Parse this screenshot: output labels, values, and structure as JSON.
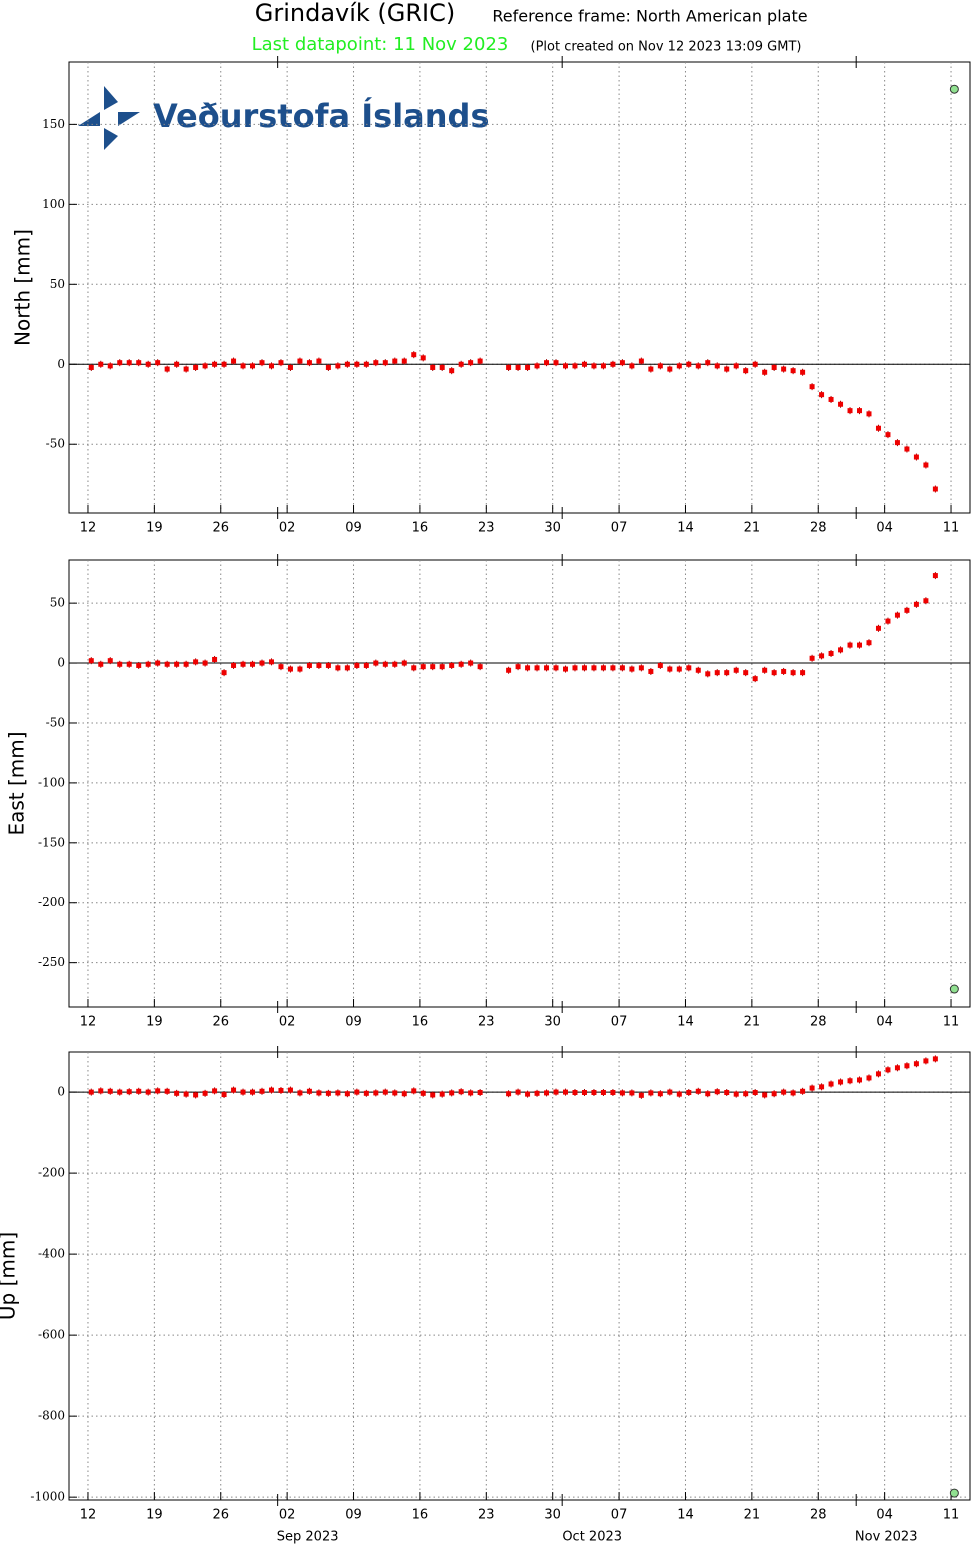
{
  "header": {
    "title": "Grindavík (GRIC)",
    "reference": "Reference frame: North American plate",
    "last_datapoint": "Last datapoint: 11 Nov 2023",
    "created": "(Plot created on Nov 12 2023 13:09 GMT)"
  },
  "logo": "Veðurstofa Íslands",
  "chart_data": [
    {
      "type": "scatter",
      "ylabel": "North [mm]",
      "grid": true,
      "xlim": [
        "2023-08-10",
        "2023-11-13"
      ],
      "xticks": [
        {
          "value": "2023-08-12",
          "label": "12"
        },
        {
          "value": "2023-08-19",
          "label": "19"
        },
        {
          "value": "2023-08-26",
          "label": "26"
        },
        {
          "value": "2023-09-02",
          "label": "02"
        },
        {
          "value": "2023-09-09",
          "label": "09"
        },
        {
          "value": "2023-09-16",
          "label": "16"
        },
        {
          "value": "2023-09-23",
          "label": "23"
        },
        {
          "value": "2023-09-30",
          "label": "30"
        },
        {
          "value": "2023-10-07",
          "label": "07"
        },
        {
          "value": "2023-10-14",
          "label": "14"
        },
        {
          "value": "2023-10-21",
          "label": "21"
        },
        {
          "value": "2023-10-28",
          "label": "28"
        },
        {
          "value": "2023-11-04",
          "label": "04"
        },
        {
          "value": "2023-11-11",
          "label": "11"
        }
      ],
      "ylim": [
        -93,
        189
      ],
      "yticks": [
        -50,
        0,
        50,
        100,
        150
      ],
      "x": [
        "2023-08-12",
        "2023-08-13",
        "2023-08-14",
        "2023-08-15",
        "2023-08-16",
        "2023-08-17",
        "2023-08-18",
        "2023-08-19",
        "2023-08-20",
        "2023-08-21",
        "2023-08-22",
        "2023-08-23",
        "2023-08-24",
        "2023-08-25",
        "2023-08-26",
        "2023-08-27",
        "2023-08-28",
        "2023-08-29",
        "2023-08-30",
        "2023-08-31",
        "2023-09-01",
        "2023-09-02",
        "2023-09-03",
        "2023-09-04",
        "2023-09-05",
        "2023-09-06",
        "2023-09-07",
        "2023-09-08",
        "2023-09-09",
        "2023-09-10",
        "2023-09-11",
        "2023-09-12",
        "2023-09-13",
        "2023-09-14",
        "2023-09-15",
        "2023-09-16",
        "2023-09-17",
        "2023-09-18",
        "2023-09-19",
        "2023-09-20",
        "2023-09-21",
        "2023-09-22",
        "2023-09-23",
        "2023-09-24",
        "2023-09-25",
        "2023-09-26",
        "2023-09-27",
        "2023-09-28",
        "2023-09-29",
        "2023-09-30",
        "2023-10-01",
        "2023-10-02",
        "2023-10-03",
        "2023-10-04",
        "2023-10-05",
        "2023-10-06",
        "2023-10-07",
        "2023-10-08",
        "2023-10-09",
        "2023-10-10",
        "2023-10-11",
        "2023-10-12",
        "2023-10-13",
        "2023-10-14",
        "2023-10-15",
        "2023-10-16",
        "2023-10-17",
        "2023-10-18",
        "2023-10-19",
        "2023-10-20",
        "2023-10-21",
        "2023-10-22",
        "2023-10-23",
        "2023-10-24",
        "2023-10-25",
        "2023-10-26",
        "2023-10-27",
        "2023-10-28",
        "2023-10-29",
        "2023-10-30",
        "2023-10-31",
        "2023-11-01",
        "2023-11-02",
        "2023-11-03",
        "2023-11-04",
        "2023-11-05",
        "2023-11-06",
        "2023-11-07",
        "2023-11-08",
        "2023-11-09"
      ],
      "series": [
        {
          "color": "#ee0000",
          "values": [
            -2,
            0,
            -1,
            1,
            1,
            1,
            0,
            1,
            -3,
            0,
            -3,
            -2,
            -1,
            0,
            0,
            2,
            -1,
            -1,
            1,
            -1,
            1,
            -2,
            2,
            1,
            2,
            -2,
            -1,
            0,
            0,
            0,
            1,
            1,
            2,
            2,
            6,
            4,
            -2,
            -2,
            -4,
            0,
            1,
            2,
            null,
            null,
            -2,
            -2,
            -2,
            -1,
            1,
            1,
            -1,
            -1,
            0,
            -1,
            -1,
            0,
            1,
            -1,
            2,
            -3,
            -1,
            -3,
            -1,
            0,
            -1,
            1,
            -1,
            -3,
            -1,
            -4,
            0,
            -5,
            -2,
            -3,
            -4,
            -5,
            -14,
            -19,
            -22,
            -25,
            -29,
            -29,
            -31,
            -40,
            -44,
            -49,
            -53,
            -58,
            -63,
            -78
          ]
        }
      ],
      "last_point": {
        "x": "2023-11-11",
        "value": 172,
        "color": "#90e090"
      }
    },
    {
      "type": "scatter",
      "ylabel": "East [mm]",
      "grid": true,
      "xlim": [
        "2023-08-10",
        "2023-11-13"
      ],
      "xticks": [
        {
          "value": "2023-08-12",
          "label": "12"
        },
        {
          "value": "2023-08-19",
          "label": "19"
        },
        {
          "value": "2023-08-26",
          "label": "26"
        },
        {
          "value": "2023-09-02",
          "label": "02"
        },
        {
          "value": "2023-09-09",
          "label": "09"
        },
        {
          "value": "2023-09-16",
          "label": "16"
        },
        {
          "value": "2023-09-23",
          "label": "23"
        },
        {
          "value": "2023-09-30",
          "label": "30"
        },
        {
          "value": "2023-10-07",
          "label": "07"
        },
        {
          "value": "2023-10-14",
          "label": "14"
        },
        {
          "value": "2023-10-21",
          "label": "21"
        },
        {
          "value": "2023-10-28",
          "label": "28"
        },
        {
          "value": "2023-11-04",
          "label": "04"
        },
        {
          "value": "2023-11-11",
          "label": "11"
        }
      ],
      "ylim": [
        -287,
        86
      ],
      "yticks": [
        -250,
        -200,
        -150,
        -100,
        -50,
        0,
        50
      ],
      "series": [
        {
          "color": "#ee0000",
          "values": [
            2,
            -1,
            2,
            -1,
            -1,
            -2,
            -1,
            0,
            -1,
            -1,
            -1,
            1,
            0,
            3,
            -8,
            -2,
            -1,
            -1,
            0,
            1,
            -3,
            -5,
            -5,
            -2,
            -2,
            -2,
            -4,
            -4,
            -2,
            -2,
            0,
            -1,
            -1,
            0,
            -4,
            -3,
            -3,
            -3,
            -2,
            -1,
            0,
            -3,
            null,
            null,
            -6,
            -3,
            -4,
            -4,
            -4,
            -4,
            -5,
            -4,
            -4,
            -4,
            -4,
            -4,
            -4,
            -5,
            -4,
            -7,
            -2,
            -5,
            -5,
            -4,
            -6,
            -9,
            -8,
            -8,
            -6,
            -8,
            -13,
            -6,
            -8,
            -7,
            -8,
            -8,
            4,
            6,
            8,
            11,
            15,
            15,
            17,
            29,
            35,
            40,
            44,
            49,
            52,
            73
          ]
        }
      ],
      "last_point": {
        "x": "2023-11-11",
        "value": -272,
        "color": "#90e090"
      }
    },
    {
      "type": "scatter",
      "ylabel": "Up [mm]",
      "grid": true,
      "xlim": [
        "2023-08-10",
        "2023-11-13"
      ],
      "xticks": [
        {
          "value": "2023-08-12",
          "label": "12"
        },
        {
          "value": "2023-08-19",
          "label": "19"
        },
        {
          "value": "2023-08-26",
          "label": "26"
        },
        {
          "value": "2023-09-02",
          "label": "02"
        },
        {
          "value": "2023-09-09",
          "label": "09"
        },
        {
          "value": "2023-09-16",
          "label": "16"
        },
        {
          "value": "2023-09-23",
          "label": "23"
        },
        {
          "value": "2023-09-30",
          "label": "30"
        },
        {
          "value": "2023-10-07",
          "label": "07"
        },
        {
          "value": "2023-10-14",
          "label": "14"
        },
        {
          "value": "2023-10-21",
          "label": "21"
        },
        {
          "value": "2023-10-28",
          "label": "28"
        },
        {
          "value": "2023-11-04",
          "label": "04"
        },
        {
          "value": "2023-11-11",
          "label": "11"
        }
      ],
      "months": [
        {
          "value": "2023-09-01",
          "label": "Sep 2023"
        },
        {
          "value": "2023-10-01",
          "label": "Oct 2023"
        },
        {
          "value": "2023-11-01",
          "label": "Nov 2023"
        }
      ],
      "ylim": [
        -1007,
        99
      ],
      "yticks": [
        -1000,
        -800,
        -600,
        -400,
        -200,
        0
      ],
      "series": [
        {
          "color": "#ee0000",
          "values": [
            0,
            3,
            2,
            0,
            1,
            2,
            0,
            3,
            2,
            -3,
            -5,
            -7,
            -3,
            3,
            -6,
            5,
            0,
            0,
            2,
            5,
            4,
            5,
            -2,
            2,
            -2,
            -3,
            -2,
            -4,
            0,
            -3,
            -2,
            0,
            -2,
            -4,
            3,
            -3,
            -7,
            -5,
            -2,
            1,
            -2,
            -1,
            null,
            null,
            -4,
            0,
            -5,
            -3,
            -2,
            0,
            0,
            -1,
            -1,
            -1,
            -1,
            -1,
            -2,
            -2,
            -8,
            -2,
            -4,
            0,
            -5,
            -1,
            2,
            -4,
            1,
            -1,
            -5,
            -4,
            -1,
            -7,
            -4,
            0,
            -2,
            2,
            10,
            13,
            20,
            25,
            28,
            30,
            35,
            45,
            55,
            60,
            65,
            70,
            77,
            82
          ]
        }
      ],
      "last_point": {
        "x": "2023-11-11",
        "value": -990,
        "color": "#90e090"
      }
    }
  ]
}
